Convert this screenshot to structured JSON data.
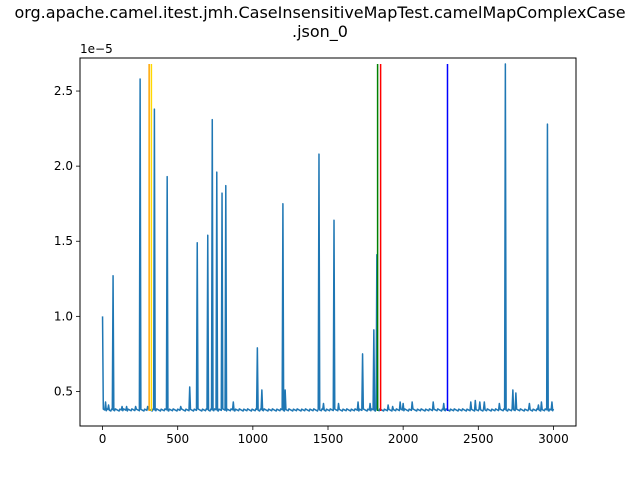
{
  "chart_data": {
    "type": "line",
    "title_line1": "org.apache.camel.itest.jmh.CaseInsensitiveMapTest.camelMapComplexCase",
    "title_line2": ".json_0",
    "xlabel": "",
    "ylabel": "",
    "y_multiplier": "1e−5",
    "xlim": [
      -150,
      3150
    ],
    "ylim": [
      0.27,
      2.72
    ],
    "x_ticks": [
      0,
      500,
      1000,
      1500,
      2000,
      2500,
      3000
    ],
    "x_tick_labels": [
      "0",
      "500",
      "1000",
      "1500",
      "2000",
      "2500",
      "3000"
    ],
    "y_ticks": [
      0.5,
      1.0,
      1.5,
      2.0,
      2.5
    ],
    "y_tick_labels": [
      "0.5",
      "1.0",
      "1.5",
      "2.0",
      "2.5"
    ],
    "grid": false,
    "series": [
      {
        "color": "#1f77b4",
        "baseline": 0.37,
        "x_range": [
          0,
          3000
        ],
        "spikes": [
          [
            0,
            1.0
          ],
          [
            20,
            0.43
          ],
          [
            40,
            0.41
          ],
          [
            70,
            1.27
          ],
          [
            130,
            0.4
          ],
          [
            160,
            0.4
          ],
          [
            220,
            0.4
          ],
          [
            250,
            2.58
          ],
          [
            300,
            0.4
          ],
          [
            345,
            2.38
          ],
          [
            430,
            1.93
          ],
          [
            520,
            0.4
          ],
          [
            580,
            0.53
          ],
          [
            630,
            1.49
          ],
          [
            700,
            1.54
          ],
          [
            730,
            2.31
          ],
          [
            760,
            1.96
          ],
          [
            795,
            1.82
          ],
          [
            820,
            1.87
          ],
          [
            870,
            0.43
          ],
          [
            1030,
            0.79
          ],
          [
            1060,
            0.51
          ],
          [
            1200,
            1.75
          ],
          [
            1215,
            0.51
          ],
          [
            1440,
            2.08
          ],
          [
            1470,
            0.42
          ],
          [
            1540,
            1.64
          ],
          [
            1570,
            0.42
          ],
          [
            1700,
            0.43
          ],
          [
            1730,
            0.75
          ],
          [
            1780,
            0.42
          ],
          [
            1805,
            0.91
          ],
          [
            1825,
            1.41
          ],
          [
            1900,
            0.41
          ],
          [
            1930,
            0.4
          ],
          [
            1980,
            0.43
          ],
          [
            2000,
            0.42
          ],
          [
            2060,
            0.43
          ],
          [
            2200,
            0.43
          ],
          [
            2270,
            0.42
          ],
          [
            2450,
            0.43
          ],
          [
            2480,
            0.44
          ],
          [
            2510,
            0.43
          ],
          [
            2540,
            0.43
          ],
          [
            2640,
            0.42
          ],
          [
            2680,
            2.68
          ],
          [
            2730,
            0.51
          ],
          [
            2750,
            0.49
          ],
          [
            2840,
            0.42
          ],
          [
            2900,
            0.41
          ],
          [
            2920,
            0.43
          ],
          [
            2960,
            2.28
          ],
          [
            2990,
            0.43
          ]
        ]
      }
    ],
    "vertical_lines": [
      {
        "x": 310,
        "color": "#ffa500"
      },
      {
        "x": 325,
        "color": "#ffd700"
      },
      {
        "x": 1830,
        "color": "#008000"
      },
      {
        "x": 1850,
        "color": "#ff0000"
      },
      {
        "x": 2295,
        "color": "#0000ff"
      }
    ]
  }
}
